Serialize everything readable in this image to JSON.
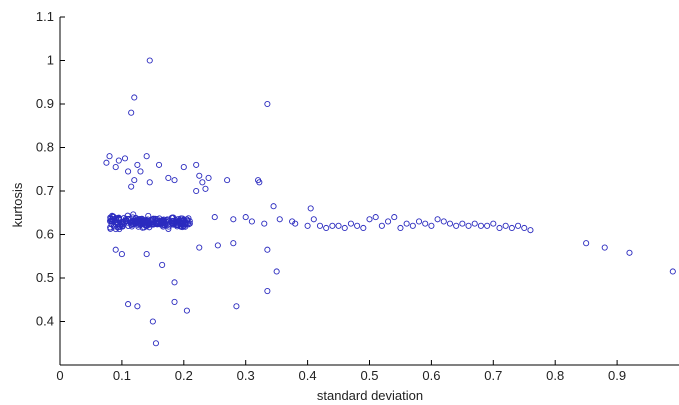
{
  "chart_data": {
    "type": "scatter",
    "title": "",
    "xlabel": "standard deviation",
    "ylabel": "kurtosis",
    "xlim": [
      0,
      1
    ],
    "ylim": [
      0.3,
      1.1
    ],
    "x_ticks": [
      "0",
      "0.1",
      "0.2",
      "0.3",
      "0.4",
      "0.5",
      "0.6",
      "0.7",
      "0.8",
      "0.9"
    ],
    "y_ticks": [
      "0.4",
      "0.5",
      "0.6",
      "0.7",
      "0.8",
      "0.9",
      "1",
      "1.1"
    ],
    "grid": false,
    "marker": "open-circle",
    "marker_color": "#2b2bbf",
    "points": [
      [
        0.145,
        1.0
      ],
      [
        0.12,
        0.915
      ],
      [
        0.335,
        0.9
      ],
      [
        0.115,
        0.88
      ],
      [
        0.08,
        0.78
      ],
      [
        0.075,
        0.765
      ],
      [
        0.095,
        0.77
      ],
      [
        0.105,
        0.775
      ],
      [
        0.14,
        0.78
      ],
      [
        0.16,
        0.76
      ],
      [
        0.125,
        0.76
      ],
      [
        0.09,
        0.755
      ],
      [
        0.11,
        0.745
      ],
      [
        0.13,
        0.745
      ],
      [
        0.2,
        0.755
      ],
      [
        0.22,
        0.76
      ],
      [
        0.12,
        0.725
      ],
      [
        0.115,
        0.71
      ],
      [
        0.145,
        0.72
      ],
      [
        0.175,
        0.73
      ],
      [
        0.185,
        0.725
      ],
      [
        0.225,
        0.735
      ],
      [
        0.23,
        0.72
      ],
      [
        0.24,
        0.73
      ],
      [
        0.27,
        0.725
      ],
      [
        0.32,
        0.725
      ],
      [
        0.322,
        0.72
      ],
      [
        0.235,
        0.705
      ],
      [
        0.22,
        0.7
      ],
      [
        0.345,
        0.665
      ],
      [
        0.25,
        0.64
      ],
      [
        0.28,
        0.635
      ],
      [
        0.3,
        0.64
      ],
      [
        0.31,
        0.63
      ],
      [
        0.33,
        0.625
      ],
      [
        0.355,
        0.635
      ],
      [
        0.375,
        0.63
      ],
      [
        0.38,
        0.625
      ],
      [
        0.4,
        0.62
      ],
      [
        0.41,
        0.635
      ],
      [
        0.405,
        0.66
      ],
      [
        0.42,
        0.62
      ],
      [
        0.43,
        0.615
      ],
      [
        0.44,
        0.62
      ],
      [
        0.45,
        0.62
      ],
      [
        0.46,
        0.615
      ],
      [
        0.47,
        0.625
      ],
      [
        0.48,
        0.62
      ],
      [
        0.49,
        0.615
      ],
      [
        0.5,
        0.635
      ],
      [
        0.51,
        0.64
      ],
      [
        0.52,
        0.62
      ],
      [
        0.53,
        0.63
      ],
      [
        0.54,
        0.64
      ],
      [
        0.55,
        0.615
      ],
      [
        0.56,
        0.625
      ],
      [
        0.57,
        0.62
      ],
      [
        0.58,
        0.63
      ],
      [
        0.59,
        0.625
      ],
      [
        0.6,
        0.62
      ],
      [
        0.61,
        0.635
      ],
      [
        0.62,
        0.63
      ],
      [
        0.63,
        0.625
      ],
      [
        0.64,
        0.62
      ],
      [
        0.65,
        0.625
      ],
      [
        0.66,
        0.62
      ],
      [
        0.67,
        0.625
      ],
      [
        0.68,
        0.62
      ],
      [
        0.69,
        0.62
      ],
      [
        0.7,
        0.625
      ],
      [
        0.71,
        0.615
      ],
      [
        0.72,
        0.62
      ],
      [
        0.73,
        0.615
      ],
      [
        0.74,
        0.62
      ],
      [
        0.75,
        0.615
      ],
      [
        0.76,
        0.61
      ],
      [
        0.85,
        0.58
      ],
      [
        0.88,
        0.57
      ],
      [
        0.92,
        0.558
      ],
      [
        0.99,
        0.515
      ],
      [
        0.09,
        0.565
      ],
      [
        0.1,
        0.555
      ],
      [
        0.14,
        0.555
      ],
      [
        0.165,
        0.53
      ],
      [
        0.225,
        0.57
      ],
      [
        0.255,
        0.575
      ],
      [
        0.28,
        0.58
      ],
      [
        0.335,
        0.565
      ],
      [
        0.35,
        0.515
      ],
      [
        0.185,
        0.49
      ],
      [
        0.335,
        0.47
      ],
      [
        0.11,
        0.44
      ],
      [
        0.125,
        0.435
      ],
      [
        0.185,
        0.445
      ],
      [
        0.205,
        0.425
      ],
      [
        0.285,
        0.435
      ],
      [
        0.15,
        0.4
      ],
      [
        0.155,
        0.35
      ]
    ],
    "dense_cluster": {
      "x_range": [
        0.08,
        0.21
      ],
      "y_center": 0.628,
      "y_spread": 0.016,
      "count": 240
    }
  }
}
